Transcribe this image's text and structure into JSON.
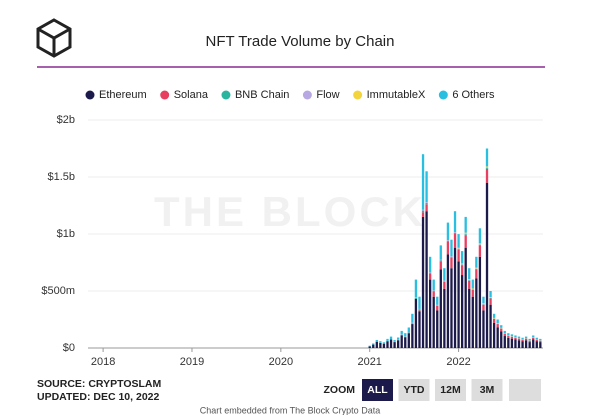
{
  "chart_data": {
    "type": "stacked_bar",
    "title": "NFT Trade Volume by Chain",
    "watermark": "THE BLOCK",
    "source": "SOURCE: CRYPTOSLAM",
    "updated": "UPDATED: DEC 10, 2022",
    "zoom_label": "ZOOM",
    "zoom_buttons": [
      "ALL",
      "YTD",
      "12M",
      "3M"
    ],
    "zoom_active": "ALL",
    "footer": "Chart embedded from The Block Crypto Data",
    "x": [
      2021.0,
      2021.04,
      2021.08,
      2021.12,
      2021.16,
      2021.2,
      2021.24,
      2021.28,
      2021.32,
      2021.36,
      2021.4,
      2021.44,
      2021.48,
      2021.52,
      2021.56,
      2021.6,
      2021.64,
      2021.68,
      2021.72,
      2021.76,
      2021.8,
      2021.84,
      2021.88,
      2021.92,
      2021.96,
      2022.0,
      2022.04,
      2022.08,
      2022.12,
      2022.16,
      2022.2,
      2022.24,
      2022.28,
      2022.32,
      2022.36,
      2022.4,
      2022.44,
      2022.48,
      2022.52,
      2022.56,
      2022.6,
      2022.64,
      2022.68,
      2022.72,
      2022.76,
      2022.8,
      2022.84,
      2022.88,
      2022.92
    ],
    "xlim": [
      2017.83,
      2022.95
    ],
    "xticks": [
      2018,
      2019,
      2020,
      2021,
      2022
    ],
    "ylim": [
      0,
      2000
    ],
    "yticks": [
      {
        "value": 0,
        "label": "$0"
      },
      {
        "value": 500,
        "label": "$500m"
      },
      {
        "value": 1000,
        "label": "$1b"
      },
      {
        "value": 1500,
        "label": "$1.5b"
      },
      {
        "value": 2000,
        "label": "$2b"
      }
    ],
    "grid": true,
    "series": [
      {
        "name": "Ethereum",
        "color": "#1c1a4a",
        "values": [
          15,
          30,
          55,
          45,
          38,
          60,
          75,
          52,
          68,
          110,
          95,
          130,
          210,
          430,
          320,
          1150,
          1200,
          600,
          450,
          330,
          690,
          520,
          820,
          700,
          880,
          760,
          640,
          880,
          520,
          450,
          610,
          800,
          330,
          1450,
          380,
          220,
          180,
          145,
          105,
          90,
          82,
          75,
          68,
          60,
          68,
          52,
          75,
          60,
          52
        ]
      },
      {
        "name": "Solana",
        "color": "#e83e5f",
        "values": [
          0,
          0,
          0,
          0,
          0,
          0,
          0,
          0,
          0,
          0,
          0,
          0,
          0,
          0,
          10,
          40,
          60,
          50,
          45,
          40,
          70,
          60,
          110,
          90,
          120,
          100,
          85,
          110,
          70,
          60,
          80,
          100,
          50,
          120,
          55,
          35,
          30,
          25,
          20,
          18,
          16,
          15,
          14,
          13,
          14,
          12,
          15,
          13,
          12
        ]
      },
      {
        "name": "BNB Chain",
        "color": "#2bb59f",
        "values": [
          0,
          0,
          0,
          0,
          0,
          0,
          0,
          0,
          2,
          5,
          5,
          6,
          8,
          10,
          8,
          15,
          12,
          8,
          6,
          5,
          8,
          6,
          10,
          8,
          10,
          8,
          6,
          8,
          5,
          4,
          5,
          6,
          4,
          8,
          4,
          3,
          2,
          2,
          2,
          1,
          1,
          1,
          1,
          1,
          1,
          1,
          1,
          1,
          1
        ]
      },
      {
        "name": "Flow",
        "color": "#b7a8e2",
        "values": [
          0,
          0,
          0,
          0,
          1,
          2,
          3,
          2,
          3,
          4,
          3,
          4,
          5,
          6,
          5,
          8,
          7,
          5,
          4,
          4,
          6,
          5,
          7,
          6,
          7,
          6,
          5,
          6,
          4,
          3,
          4,
          5,
          3,
          6,
          3,
          2,
          2,
          2,
          1,
          1,
          1,
          1,
          1,
          1,
          1,
          1,
          1,
          1,
          1
        ]
      },
      {
        "name": "ImmutableX",
        "color": "#f4d43c",
        "values": [
          0,
          0,
          0,
          0,
          0,
          0,
          0,
          0,
          0,
          0,
          0,
          0,
          0,
          0,
          0,
          0,
          0,
          0,
          0,
          0,
          0,
          0,
          0,
          0,
          0,
          5,
          6,
          8,
          6,
          5,
          6,
          7,
          5,
          9,
          5,
          4,
          4,
          3,
          3,
          3,
          3,
          3,
          2,
          2,
          2,
          2,
          3,
          2,
          2
        ]
      },
      {
        "name": "6 Others",
        "color": "#29bfe0",
        "values": [
          5,
          10,
          15,
          15,
          11,
          18,
          22,
          16,
          19,
          31,
          27,
          40,
          77,
          154,
          107,
          487,
          271,
          137,
          95,
          71,
          126,
          109,
          153,
          146,
          183,
          120,
          108,
          138,
          95,
          78,
          95,
          132,
          58,
          157,
          53,
          36,
          32,
          23,
          19,
          17,
          17,
          15,
          14,
          13,
          14,
          12,
          15,
          13,
          12
        ]
      }
    ]
  }
}
